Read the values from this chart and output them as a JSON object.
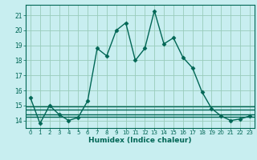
{
  "xlabel": "Humidex (Indice chaleur)",
  "bg_color": "#c8eef0",
  "grid_color": "#99ccbb",
  "line_color": "#006655",
  "x": [
    0,
    1,
    2,
    3,
    4,
    5,
    6,
    7,
    8,
    9,
    10,
    11,
    12,
    13,
    14,
    15,
    16,
    17,
    18,
    19,
    20,
    21,
    22,
    23
  ],
  "main_line": [
    15.5,
    13.8,
    15.0,
    14.4,
    14.0,
    14.2,
    15.3,
    18.8,
    18.3,
    20.0,
    20.5,
    18.0,
    18.8,
    21.3,
    19.1,
    19.5,
    18.2,
    17.5,
    15.9,
    14.8,
    14.3,
    14.0,
    14.1,
    14.3
  ],
  "flat_lines": [
    14.93,
    14.7,
    14.42,
    14.25
  ],
  "ylim": [
    13.5,
    21.7
  ],
  "yticks": [
    14,
    15,
    16,
    17,
    18,
    19,
    20,
    21
  ],
  "xticks": [
    0,
    1,
    2,
    3,
    4,
    5,
    6,
    7,
    8,
    9,
    10,
    11,
    12,
    13,
    14,
    15,
    16,
    17,
    18,
    19,
    20,
    21,
    22,
    23
  ],
  "markersize": 2.5,
  "linewidth": 1.0
}
